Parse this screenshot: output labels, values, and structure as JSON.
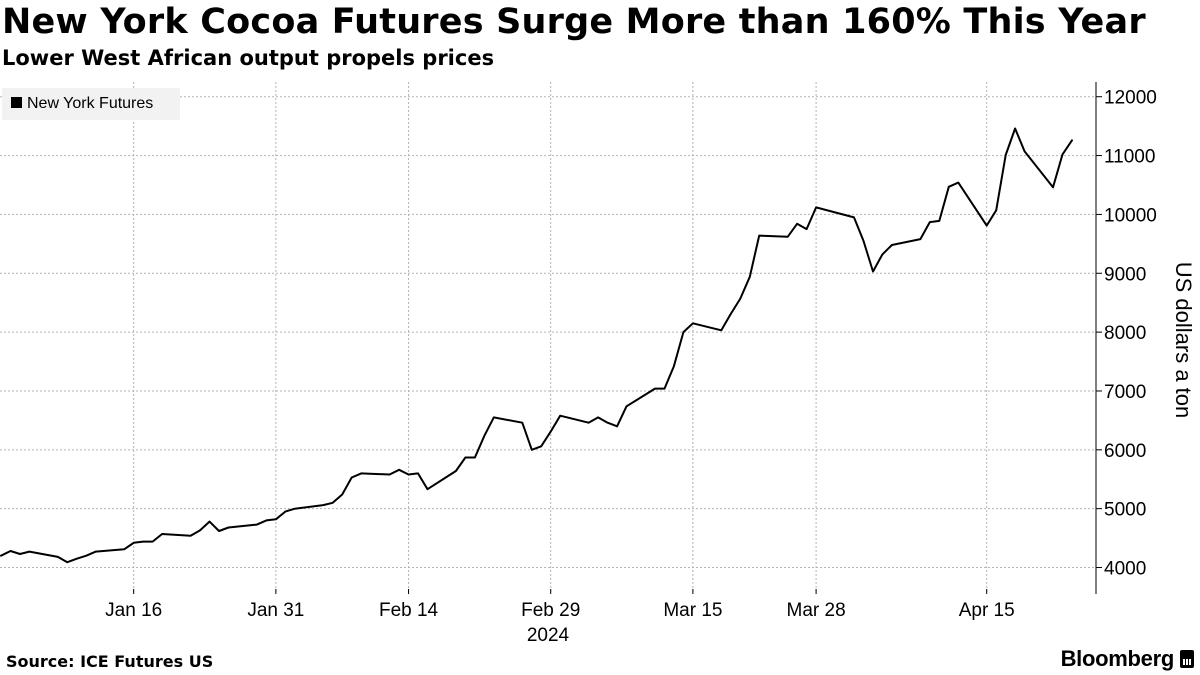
{
  "header": {
    "title": "New York Cocoa Futures Surge More than 160% This Year",
    "subtitle": "Lower West African output propels prices"
  },
  "footer": {
    "source": "Source: ICE Futures US",
    "brand": "Bloomberg"
  },
  "colors": {
    "line": "#000000",
    "grid": "#b3b3b3",
    "legend_bg": "#f2f2f2"
  },
  "chart_data": {
    "type": "line",
    "title": "New York Cocoa Futures Surge More than 160% This Year",
    "subtitle": "Lower West African output propels prices",
    "ylabel": "US dollars a ton",
    "xlabel": "2024",
    "ylim": [
      3550,
      12250
    ],
    "y_ticks": [
      4000,
      5000,
      6000,
      7000,
      8000,
      9000,
      10000,
      11000,
      12000
    ],
    "x_ticks": [
      "Jan 16",
      "Jan 31",
      "Feb 14",
      "Feb 29",
      "Mar 15",
      "Mar 28",
      "Apr 15"
    ],
    "x_tick_dates": [
      "2024-01-16",
      "2024-01-31",
      "2024-02-14",
      "2024-02-29",
      "2024-03-15",
      "2024-03-28",
      "2024-04-15"
    ],
    "year_label": "2024",
    "grid": true,
    "legend_position": "top-left",
    "series": [
      {
        "name": "New York Futures",
        "color": "#000000",
        "points": [
          [
            "2024-01-02",
            4200
          ],
          [
            "2024-01-03",
            4280
          ],
          [
            "2024-01-04",
            4230
          ],
          [
            "2024-01-05",
            4270
          ],
          [
            "2024-01-08",
            4180
          ],
          [
            "2024-01-09",
            4090
          ],
          [
            "2024-01-10",
            4150
          ],
          [
            "2024-01-11",
            4200
          ],
          [
            "2024-01-12",
            4270
          ],
          [
            "2024-01-15",
            4310
          ],
          [
            "2024-01-16",
            4420
          ],
          [
            "2024-01-17",
            4440
          ],
          [
            "2024-01-18",
            4440
          ],
          [
            "2024-01-19",
            4570
          ],
          [
            "2024-01-22",
            4540
          ],
          [
            "2024-01-23",
            4630
          ],
          [
            "2024-01-24",
            4780
          ],
          [
            "2024-01-25",
            4620
          ],
          [
            "2024-01-26",
            4680
          ],
          [
            "2024-01-29",
            4730
          ],
          [
            "2024-01-30",
            4800
          ],
          [
            "2024-01-31",
            4820
          ],
          [
            "2024-02-01",
            4950
          ],
          [
            "2024-02-02",
            5000
          ],
          [
            "2024-02-05",
            5060
          ],
          [
            "2024-02-06",
            5100
          ],
          [
            "2024-02-07",
            5240
          ],
          [
            "2024-02-08",
            5530
          ],
          [
            "2024-02-09",
            5600
          ],
          [
            "2024-02-12",
            5580
          ],
          [
            "2024-02-13",
            5660
          ],
          [
            "2024-02-14",
            5580
          ],
          [
            "2024-02-15",
            5600
          ],
          [
            "2024-02-16",
            5330
          ],
          [
            "2024-02-19",
            5640
          ],
          [
            "2024-02-20",
            5870
          ],
          [
            "2024-02-21",
            5870
          ],
          [
            "2024-02-22",
            6240
          ],
          [
            "2024-02-23",
            6550
          ],
          [
            "2024-02-26",
            6460
          ],
          [
            "2024-02-27",
            6000
          ],
          [
            "2024-02-28",
            6060
          ],
          [
            "2024-02-29",
            6310
          ],
          [
            "2024-03-01",
            6580
          ],
          [
            "2024-03-04",
            6460
          ],
          [
            "2024-03-05",
            6550
          ],
          [
            "2024-03-06",
            6460
          ],
          [
            "2024-03-07",
            6400
          ],
          [
            "2024-03-08",
            6740
          ],
          [
            "2024-03-11",
            7040
          ],
          [
            "2024-03-12",
            7040
          ],
          [
            "2024-03-13",
            7420
          ],
          [
            "2024-03-14",
            8000
          ],
          [
            "2024-03-15",
            8150
          ],
          [
            "2024-03-18",
            8030
          ],
          [
            "2024-03-19",
            8310
          ],
          [
            "2024-03-20",
            8570
          ],
          [
            "2024-03-21",
            8940
          ],
          [
            "2024-03-22",
            9640
          ],
          [
            "2024-03-25",
            9620
          ],
          [
            "2024-03-26",
            9840
          ],
          [
            "2024-03-27",
            9750
          ],
          [
            "2024-03-28",
            10120
          ],
          [
            "2024-04-01",
            9950
          ],
          [
            "2024-04-02",
            9550
          ],
          [
            "2024-04-03",
            9030
          ],
          [
            "2024-04-04",
            9320
          ],
          [
            "2024-04-05",
            9480
          ],
          [
            "2024-04-08",
            9580
          ],
          [
            "2024-04-09",
            9870
          ],
          [
            "2024-04-10",
            9890
          ],
          [
            "2024-04-11",
            10470
          ],
          [
            "2024-04-12",
            10540
          ],
          [
            "2024-04-15",
            9810
          ],
          [
            "2024-04-16",
            10070
          ],
          [
            "2024-04-17",
            11010
          ],
          [
            "2024-04-18",
            11460
          ],
          [
            "2024-04-19",
            11070
          ],
          [
            "2024-04-22",
            10460
          ],
          [
            "2024-04-23",
            11020
          ],
          [
            "2024-04-24",
            11260
          ]
        ]
      }
    ]
  }
}
